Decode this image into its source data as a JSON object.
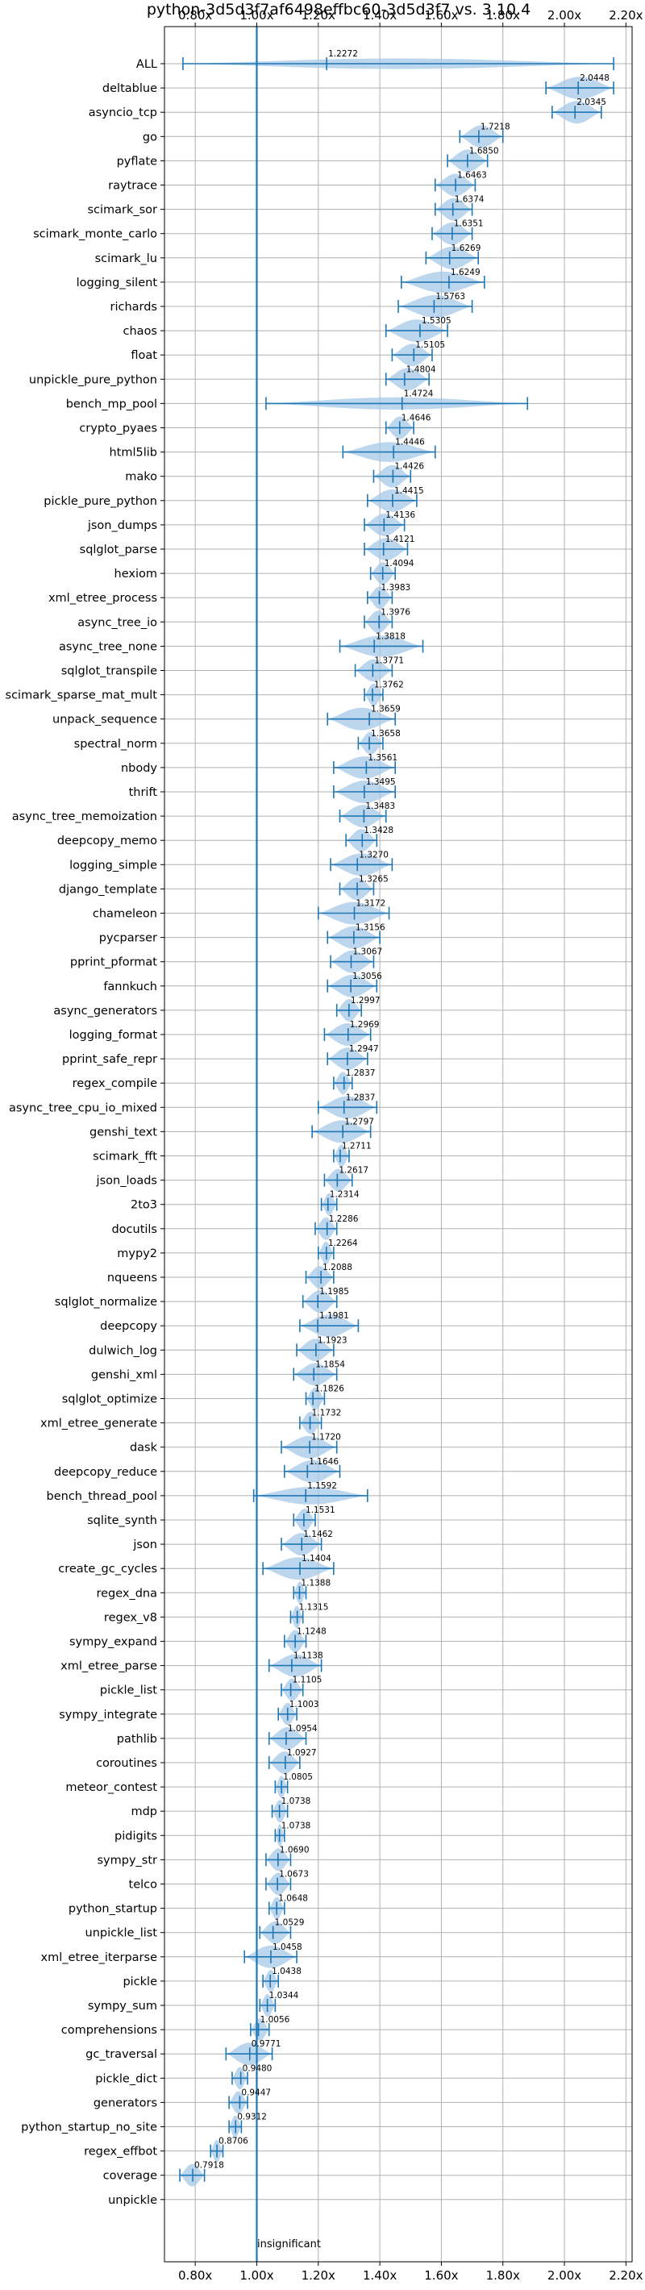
{
  "chart_data": {
    "type": "violin",
    "title": "python-3d5d3f7af6498effbc60-3d5d3f7 vs. 3.10.4",
    "xlabel": "",
    "ylabel": "",
    "xlim": [
      0.7,
      2.22
    ],
    "x_ticks": [
      0.8,
      1.0,
      1.2,
      1.4,
      1.6,
      1.8,
      2.0,
      2.2
    ],
    "x_tick_labels": [
      "0.80x",
      "1.00x",
      "1.20x",
      "1.40x",
      "1.60x",
      "1.80x",
      "2.00x",
      "2.20x"
    ],
    "reference_line": 1.0,
    "grid": true,
    "colors": {
      "line": "#1f77b4",
      "violin": "#a6c8e8",
      "grid": "#b0b0b0"
    },
    "annotation": "insignificant",
    "categories": [
      "ALL",
      "deltablue",
      "asyncio_tcp",
      "go",
      "pyflate",
      "raytrace",
      "scimark_sor",
      "scimark_monte_carlo",
      "scimark_lu",
      "logging_silent",
      "richards",
      "chaos",
      "float",
      "unpickle_pure_python",
      "bench_mp_pool",
      "crypto_pyaes",
      "html5lib",
      "mako",
      "pickle_pure_python",
      "json_dumps",
      "sqlglot_parse",
      "hexiom",
      "xml_etree_process",
      "async_tree_io",
      "async_tree_none",
      "sqlglot_transpile",
      "scimark_sparse_mat_mult",
      "unpack_sequence",
      "spectral_norm",
      "nbody",
      "thrift",
      "async_tree_memoization",
      "deepcopy_memo",
      "logging_simple",
      "django_template",
      "chameleon",
      "pycparser",
      "pprint_pformat",
      "fannkuch",
      "async_generators",
      "logging_format",
      "pprint_safe_repr",
      "regex_compile",
      "async_tree_cpu_io_mixed",
      "genshi_text",
      "scimark_fft",
      "json_loads",
      "2to3",
      "docutils",
      "mypy2",
      "nqueens",
      "sqlglot_normalize",
      "deepcopy",
      "dulwich_log",
      "genshi_xml",
      "sqlglot_optimize",
      "xml_etree_generate",
      "dask",
      "deepcopy_reduce",
      "bench_thread_pool",
      "sqlite_synth",
      "json",
      "create_gc_cycles",
      "regex_dna",
      "regex_v8",
      "sympy_expand",
      "xml_etree_parse",
      "pickle_list",
      "sympy_integrate",
      "pathlib",
      "coroutines",
      "meteor_contest",
      "mdp",
      "pidigits",
      "sympy_str",
      "telco",
      "python_startup",
      "unpickle_list",
      "xml_etree_iterparse",
      "pickle",
      "sympy_sum",
      "comprehensions",
      "gc_traversal",
      "pickle_dict",
      "generators",
      "python_startup_no_site",
      "regex_effbot",
      "coverage",
      "unpickle"
    ],
    "values": [
      1.2272,
      2.0448,
      2.0345,
      1.7218,
      1.685,
      1.6463,
      1.6374,
      1.6351,
      1.6269,
      1.6249,
      1.5763,
      1.5305,
      1.5105,
      1.4804,
      1.4724,
      1.4646,
      1.4446,
      1.4426,
      1.4415,
      1.4136,
      1.4121,
      1.4094,
      1.3983,
      1.3976,
      1.3818,
      1.3771,
      1.3762,
      1.3659,
      1.3658,
      1.3561,
      1.3495,
      1.3483,
      1.3428,
      1.327,
      1.3265,
      1.3172,
      1.3156,
      1.3067,
      1.3056,
      1.2997,
      1.2969,
      1.2947,
      1.2837,
      1.2837,
      1.2797,
      1.2711,
      1.2617,
      1.2314,
      1.2286,
      1.2264,
      1.2088,
      1.1985,
      1.1981,
      1.1923,
      1.1854,
      1.1826,
      1.1732,
      1.172,
      1.1646,
      1.1592,
      1.1531,
      1.1462,
      1.1404,
      1.1388,
      1.1315,
      1.1248,
      1.1138,
      1.1105,
      1.1003,
      1.0954,
      1.0927,
      1.0805,
      1.0738,
      1.0738,
      1.069,
      1.0673,
      1.0648,
      1.0529,
      1.0458,
      1.0438,
      1.0344,
      1.0056,
      0.9771,
      0.948,
      0.9447,
      0.9312,
      0.8706,
      0.7918,
      null
    ],
    "value_labels": [
      "1.2272",
      "2.0448",
      "2.0345",
      "1.7218",
      "1.6850",
      "1.6463",
      "1.6374",
      "1.6351",
      "1.6269",
      "1.6249",
      "1.5763",
      "1.5305",
      "1.5105",
      "1.4804",
      "1.4724",
      "1.4646",
      "1.4446",
      "1.4426",
      "1.4415",
      "1.4136",
      "1.4121",
      "1.4094",
      "1.3983",
      "1.3976",
      "1.3818",
      "1.3771",
      "1.3762",
      "1.3659",
      "1.3658",
      "1.3561",
      "1.3495",
      "1.3483",
      "1.3428",
      "1.3270",
      "1.3265",
      "1.3172",
      "1.3156",
      "1.3067",
      "1.3056",
      "1.2997",
      "1.2969",
      "1.2947",
      "1.2837",
      "1.2837",
      "1.2797",
      "1.2711",
      "1.2617",
      "1.2314",
      "1.2286",
      "1.2264",
      "1.2088",
      "1.1985",
      "1.1981",
      "1.1923",
      "1.1854",
      "1.1826",
      "1.1732",
      "1.1720",
      "1.1646",
      "1.1592",
      "1.1531",
      "1.1462",
      "1.1404",
      "1.1388",
      "1.1315",
      "1.1248",
      "1.1138",
      "1.1105",
      "1.1003",
      "1.0954",
      "1.0927",
      "1.0805",
      "1.0738",
      "1.0738",
      "1.0690",
      "1.0673",
      "1.0648",
      "1.0529",
      "1.0458",
      "1.0438",
      "1.0344",
      "1.0056",
      "0.9771",
      "0.9480",
      "0.9447",
      "0.9312",
      "0.8706",
      "0.7918",
      ""
    ],
    "ranges": [
      [
        0.76,
        2.16
      ],
      [
        1.94,
        2.16
      ],
      [
        1.96,
        2.12
      ],
      [
        1.66,
        1.8
      ],
      [
        1.62,
        1.75
      ],
      [
        1.58,
        1.71
      ],
      [
        1.58,
        1.7
      ],
      [
        1.57,
        1.7
      ],
      [
        1.55,
        1.72
      ],
      [
        1.47,
        1.74
      ],
      [
        1.46,
        1.7
      ],
      [
        1.42,
        1.62
      ],
      [
        1.44,
        1.57
      ],
      [
        1.42,
        1.56
      ],
      [
        1.03,
        1.88
      ],
      [
        1.42,
        1.51
      ],
      [
        1.28,
        1.58
      ],
      [
        1.38,
        1.5
      ],
      [
        1.36,
        1.52
      ],
      [
        1.35,
        1.48
      ],
      [
        1.35,
        1.49
      ],
      [
        1.37,
        1.45
      ],
      [
        1.36,
        1.44
      ],
      [
        1.35,
        1.44
      ],
      [
        1.27,
        1.54
      ],
      [
        1.32,
        1.44
      ],
      [
        1.35,
        1.41
      ],
      [
        1.23,
        1.45
      ],
      [
        1.33,
        1.41
      ],
      [
        1.25,
        1.45
      ],
      [
        1.25,
        1.45
      ],
      [
        1.27,
        1.42
      ],
      [
        1.29,
        1.39
      ],
      [
        1.24,
        1.44
      ],
      [
        1.27,
        1.38
      ],
      [
        1.2,
        1.43
      ],
      [
        1.23,
        1.4
      ],
      [
        1.24,
        1.38
      ],
      [
        1.23,
        1.39
      ],
      [
        1.26,
        1.34
      ],
      [
        1.22,
        1.37
      ],
      [
        1.23,
        1.36
      ],
      [
        1.25,
        1.31
      ],
      [
        1.2,
        1.39
      ],
      [
        1.18,
        1.37
      ],
      [
        1.25,
        1.3
      ],
      [
        1.22,
        1.31
      ],
      [
        1.21,
        1.26
      ],
      [
        1.19,
        1.26
      ],
      [
        1.2,
        1.25
      ],
      [
        1.16,
        1.25
      ],
      [
        1.15,
        1.26
      ],
      [
        1.14,
        1.33
      ],
      [
        1.13,
        1.25
      ],
      [
        1.12,
        1.26
      ],
      [
        1.16,
        1.22
      ],
      [
        1.14,
        1.21
      ],
      [
        1.08,
        1.26
      ],
      [
        1.09,
        1.27
      ],
      [
        0.99,
        1.36
      ],
      [
        1.12,
        1.19
      ],
      [
        1.08,
        1.21
      ],
      [
        1.02,
        1.25
      ],
      [
        1.12,
        1.16
      ],
      [
        1.11,
        1.15
      ],
      [
        1.09,
        1.16
      ],
      [
        1.04,
        1.21
      ],
      [
        1.08,
        1.15
      ],
      [
        1.07,
        1.13
      ],
      [
        1.04,
        1.16
      ],
      [
        1.04,
        1.14
      ],
      [
        1.06,
        1.1
      ],
      [
        1.05,
        1.1
      ],
      [
        1.06,
        1.09
      ],
      [
        1.03,
        1.11
      ],
      [
        1.03,
        1.11
      ],
      [
        1.04,
        1.09
      ],
      [
        1.01,
        1.11
      ],
      [
        0.96,
        1.13
      ],
      [
        1.02,
        1.07
      ],
      [
        1.01,
        1.06
      ],
      [
        0.98,
        1.04
      ],
      [
        0.9,
        1.05
      ],
      [
        0.92,
        0.97
      ],
      [
        0.91,
        0.97
      ],
      [
        0.91,
        0.95
      ],
      [
        0.85,
        0.89
      ],
      [
        0.75,
        0.83
      ],
      null
    ]
  }
}
